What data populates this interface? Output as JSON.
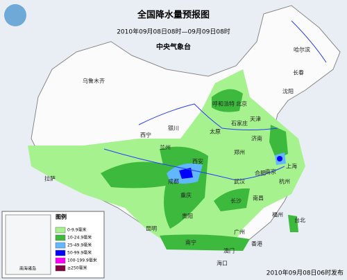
{
  "header": {
    "title": "全国降水量预报图",
    "subtitle": "2010年09月08日08时—09月09日08时",
    "issuer": "中央气象台"
  },
  "cities": [
    "乌鲁木齐",
    "拉萨",
    "西宁",
    "兰州",
    "银川",
    "呼和浩特",
    "北京",
    "天津",
    "石家庄",
    "太原",
    "济南",
    "郑州",
    "西安",
    "成都",
    "重庆",
    "武汉",
    "合肥",
    "南京",
    "上海",
    "杭州",
    "长沙",
    "南昌",
    "福州",
    "贵阳",
    "昆明",
    "南宁",
    "广州",
    "香港",
    "澳门",
    "海口",
    "台北",
    "沈阳",
    "长春",
    "哈尔滨"
  ],
  "legend": {
    "title": "图例",
    "items": [
      {
        "label": "0-9.9毫米",
        "color": "#a6f28f"
      },
      {
        "label": "10-24.9毫米",
        "color": "#3dba3d"
      },
      {
        "label": "25-49.9毫米",
        "color": "#61b8ff"
      },
      {
        "label": "50-99.9毫米",
        "color": "#0000fe"
      },
      {
        "label": "100-199.9毫米",
        "color": "#fa00fa"
      },
      {
        "label": "≥250毫米",
        "color": "#800040"
      }
    ]
  },
  "inset": {
    "label": "南海诸岛"
  },
  "footer": "2010年09月08日06时发布"
}
